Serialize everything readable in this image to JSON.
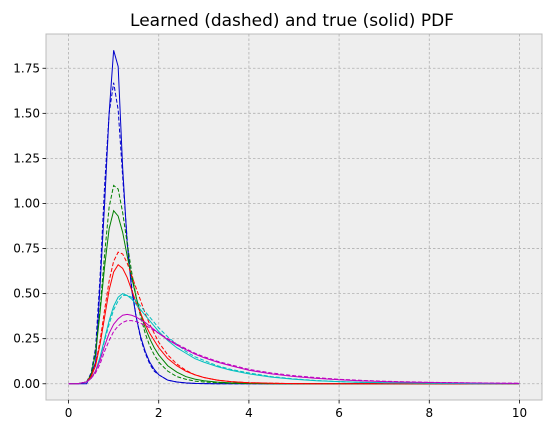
{
  "chart_data": {
    "type": "line",
    "title": "Learned (dashed) and true (solid) PDF",
    "xlabel": "",
    "ylabel": "",
    "xlim": [
      -0.5,
      10.5
    ],
    "ylim": [
      -0.09,
      1.94
    ],
    "xticks": [
      0,
      2,
      4,
      6,
      8,
      10
    ],
    "yticks": [
      0.0,
      0.25,
      0.5,
      0.75,
      1.0,
      1.25,
      1.5,
      1.75
    ],
    "xtick_labels": [
      "0",
      "2",
      "4",
      "6",
      "8",
      "10"
    ],
    "ytick_labels": [
      "0.00",
      "0.25",
      "0.50",
      "0.75",
      "1.00",
      "1.25",
      "1.50",
      "1.75"
    ],
    "grid": true,
    "x": [
      0,
      0.2,
      0.4,
      0.5,
      0.6,
      0.7,
      0.8,
      0.9,
      1.0,
      1.1,
      1.2,
      1.3,
      1.4,
      1.5,
      1.6,
      1.7,
      1.8,
      1.9,
      2.0,
      2.2,
      2.4,
      2.6,
      2.8,
      3.0,
      3.3,
      3.6,
      4.0,
      4.5,
      5.0,
      5.5,
      6.0,
      6.5,
      7.0,
      7.5,
      8.0,
      9.0,
      10.0
    ],
    "series": [
      {
        "color": "#0000cc",
        "style": "solid",
        "values": [
          0,
          0,
          0,
          0.05,
          0.12,
          0.55,
          1.0,
          1.5,
          1.85,
          1.76,
          1.2,
          0.78,
          0.52,
          0.37,
          0.26,
          0.18,
          0.12,
          0.08,
          0.05,
          0.02,
          0.01,
          0.005,
          0.002,
          0.001,
          0,
          0,
          0,
          0,
          0,
          0,
          0,
          0,
          0,
          0,
          0,
          0,
          0
        ]
      },
      {
        "color": "#0000cc",
        "style": "dashed",
        "values": [
          0,
          0,
          0.01,
          0.06,
          0.2,
          0.6,
          1.1,
          1.5,
          1.67,
          1.52,
          1.15,
          0.8,
          0.54,
          0.37,
          0.25,
          0.17,
          0.11,
          0.07,
          0.05,
          0.02,
          0.01,
          0.004,
          0.002,
          0.001,
          0,
          0,
          0,
          0,
          0,
          0,
          0,
          0,
          0,
          0,
          0,
          0,
          0
        ]
      },
      {
        "color": "#008000",
        "style": "solid",
        "values": [
          0,
          0,
          0.01,
          0.05,
          0.17,
          0.4,
          0.65,
          0.86,
          0.96,
          0.93,
          0.84,
          0.71,
          0.59,
          0.48,
          0.39,
          0.31,
          0.25,
          0.2,
          0.16,
          0.1,
          0.065,
          0.04,
          0.026,
          0.017,
          0.009,
          0.005,
          0.002,
          0.001,
          0,
          0,
          0,
          0,
          0,
          0,
          0,
          0,
          0
        ]
      },
      {
        "color": "#008000",
        "style": "dashed",
        "values": [
          0,
          0,
          0.01,
          0.05,
          0.18,
          0.42,
          0.72,
          0.98,
          1.1,
          1.08,
          0.95,
          0.78,
          0.62,
          0.48,
          0.37,
          0.28,
          0.21,
          0.16,
          0.12,
          0.07,
          0.04,
          0.025,
          0.015,
          0.01,
          0.005,
          0.002,
          0.001,
          0,
          0,
          0,
          0,
          0,
          0,
          0,
          0,
          0,
          0
        ]
      },
      {
        "color": "#ff0000",
        "style": "solid",
        "values": [
          0,
          0,
          0.01,
          0.04,
          0.1,
          0.22,
          0.37,
          0.52,
          0.62,
          0.66,
          0.64,
          0.59,
          0.52,
          0.45,
          0.39,
          0.33,
          0.28,
          0.24,
          0.2,
          0.14,
          0.1,
          0.07,
          0.05,
          0.035,
          0.02,
          0.012,
          0.006,
          0.003,
          0.001,
          0,
          0,
          0,
          0,
          0,
          0,
          0,
          0
        ]
      },
      {
        "color": "#ff0000",
        "style": "dashed",
        "values": [
          0,
          0,
          0.01,
          0.04,
          0.11,
          0.24,
          0.41,
          0.57,
          0.68,
          0.73,
          0.72,
          0.67,
          0.6,
          0.53,
          0.46,
          0.39,
          0.33,
          0.28,
          0.23,
          0.16,
          0.11,
          0.075,
          0.05,
          0.035,
          0.02,
          0.012,
          0.006,
          0.003,
          0.001,
          0,
          0,
          0,
          0,
          0,
          0,
          0,
          0
        ]
      },
      {
        "color": "#00bfbf",
        "style": "solid",
        "values": [
          0,
          0,
          0.01,
          0.03,
          0.07,
          0.15,
          0.25,
          0.35,
          0.43,
          0.48,
          0.5,
          0.49,
          0.47,
          0.44,
          0.41,
          0.38,
          0.35,
          0.32,
          0.29,
          0.24,
          0.2,
          0.17,
          0.14,
          0.12,
          0.095,
          0.075,
          0.055,
          0.037,
          0.025,
          0.017,
          0.012,
          0.008,
          0.006,
          0.004,
          0.003,
          0.001,
          0.001
        ]
      },
      {
        "color": "#00bfbf",
        "style": "dashed",
        "values": [
          0,
          0,
          0.01,
          0.03,
          0.07,
          0.14,
          0.24,
          0.33,
          0.41,
          0.46,
          0.49,
          0.49,
          0.48,
          0.46,
          0.43,
          0.4,
          0.37,
          0.34,
          0.31,
          0.26,
          0.22,
          0.18,
          0.15,
          0.13,
          0.1,
          0.08,
          0.06,
          0.04,
          0.027,
          0.018,
          0.012,
          0.008,
          0.006,
          0.004,
          0.003,
          0.001,
          0.001
        ]
      },
      {
        "color": "#bf00bf",
        "style": "solid",
        "values": [
          0,
          0,
          0.01,
          0.03,
          0.07,
          0.13,
          0.21,
          0.28,
          0.33,
          0.36,
          0.38,
          0.385,
          0.38,
          0.37,
          0.355,
          0.34,
          0.32,
          0.3,
          0.28,
          0.245,
          0.215,
          0.19,
          0.165,
          0.145,
          0.12,
          0.1,
          0.075,
          0.055,
          0.04,
          0.03,
          0.022,
          0.016,
          0.012,
          0.009,
          0.007,
          0.004,
          0.002
        ]
      },
      {
        "color": "#bf00bf",
        "style": "dashed",
        "values": [
          0,
          0,
          0.01,
          0.03,
          0.06,
          0.11,
          0.18,
          0.24,
          0.29,
          0.32,
          0.34,
          0.35,
          0.35,
          0.345,
          0.335,
          0.325,
          0.31,
          0.295,
          0.28,
          0.25,
          0.22,
          0.195,
          0.17,
          0.15,
          0.125,
          0.105,
          0.08,
          0.06,
          0.045,
          0.034,
          0.025,
          0.019,
          0.014,
          0.011,
          0.008,
          0.005,
          0.003
        ]
      }
    ]
  }
}
